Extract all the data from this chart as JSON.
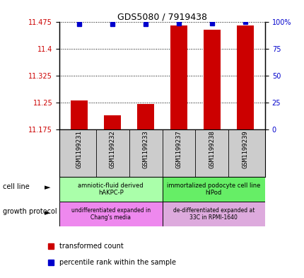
{
  "title": "GDS5080 / 7919438",
  "samples": [
    "GSM1199231",
    "GSM1199232",
    "GSM1199233",
    "GSM1199237",
    "GSM1199238",
    "GSM1199239"
  ],
  "red_values": [
    11.255,
    11.215,
    11.245,
    11.465,
    11.455,
    11.465
  ],
  "blue_percentile": [
    98,
    98,
    98,
    99,
    99,
    100
  ],
  "ylim_left": [
    11.175,
    11.475
  ],
  "ylim_right": [
    0,
    100
  ],
  "yticks_left": [
    11.175,
    11.25,
    11.325,
    11.4,
    11.475
  ],
  "yticks_right": [
    0,
    25,
    50,
    75,
    100
  ],
  "ytick_labels_left": [
    "11.175",
    "11.25",
    "11.325",
    "11.4",
    "11.475"
  ],
  "ytick_labels_right": [
    "0",
    "25",
    "50",
    "75",
    "100%"
  ],
  "cell_line_group1_label": "amniotic-fluid derived\nhAKPC-P",
  "cell_line_group2_label": "immortalized podocyte cell line\nhIPod",
  "growth_group1_label": "undifferentiated expanded in\nChang's media",
  "growth_group2_label": "de-differentiated expanded at\n33C in RPMI-1640",
  "cell_line_color1": "#aaffaa",
  "cell_line_color2": "#66ee66",
  "growth_color1": "#ee88ee",
  "growth_color2": "#ddaadd",
  "bar_color": "#cc0000",
  "dot_color": "#0000cc",
  "tick_label_color_left": "#cc0000",
  "tick_label_color_right": "#0000cc",
  "legend_red": "transformed count",
  "legend_blue": "percentile rank within the sample",
  "cell_line_label": "cell line",
  "growth_label": "growth protocol",
  "sample_bg_color": "#cccccc",
  "bar_width": 0.5
}
